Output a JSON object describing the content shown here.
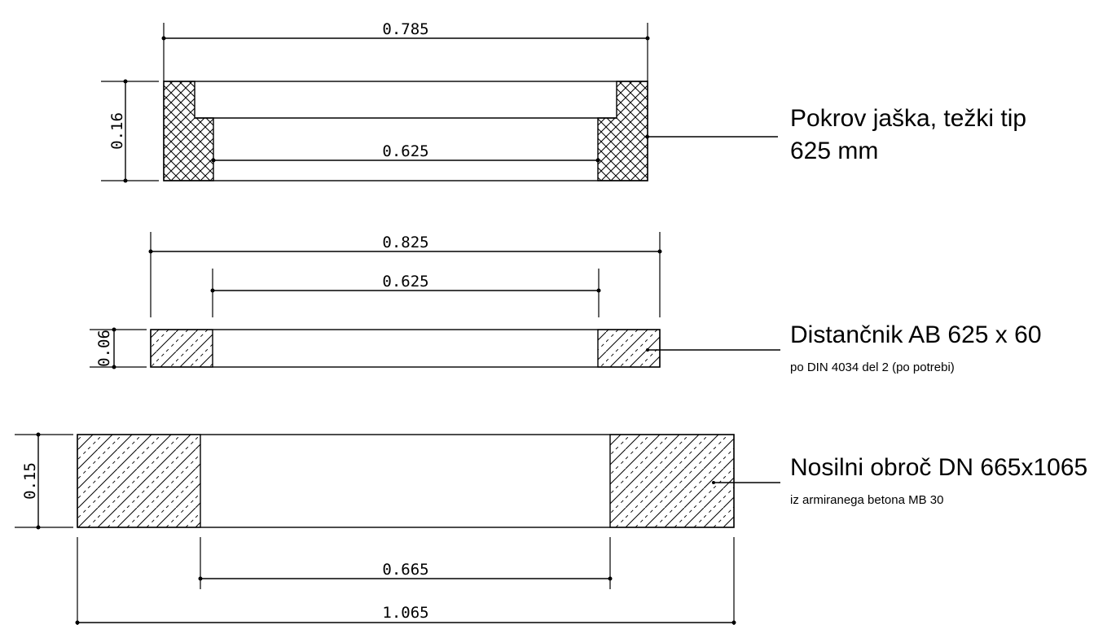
{
  "cover": {
    "title": "Pokrov jaška, težki tip",
    "subtitle": "625 mm",
    "width_outer": "0.785",
    "width_inner": "0.625",
    "height": "0.16"
  },
  "spacer": {
    "title": "Distančnik AB 625 x 60",
    "subtitle": "po DIN 4034 del 2 (po potrebi)",
    "width_outer": "0.825",
    "width_inner": "0.625",
    "height": "0.06"
  },
  "ring": {
    "title": "Nosilni obroč DN 665x1065",
    "subtitle": "iz armiranega betona MB 30",
    "width_outer": "1.065",
    "width_inner": "0.665",
    "height": "0.15"
  }
}
